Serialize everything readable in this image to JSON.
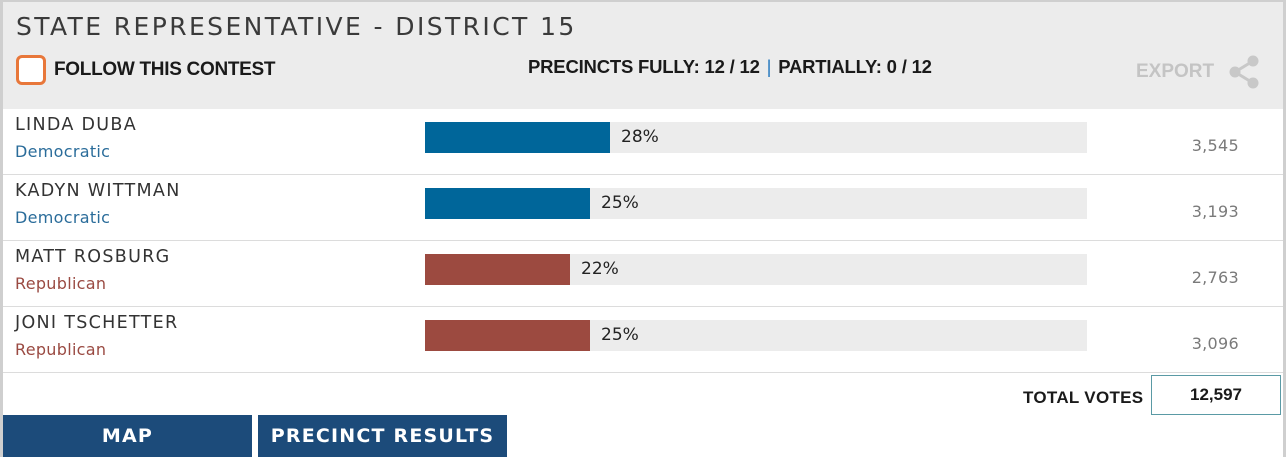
{
  "contest": {
    "title": "STATE REPRESENTATIVE - DISTRICT 15",
    "follow_label": "FOLLOW THIS CONTEST",
    "precincts_fully_label": "PRECINCTS FULLY:",
    "precincts_fully_value": "12 / 12",
    "separator": "|",
    "precincts_partially_label": "PARTIALLY:",
    "precincts_partially_value": "0 / 12",
    "export_label": "EXPORT"
  },
  "colors": {
    "democratic": "#00669a",
    "republican": "#9c4a40",
    "accent_checkbox": "#e8773a",
    "button_bg": "#1c4b7a"
  },
  "candidates": [
    {
      "name": "LINDA DUBA",
      "party": "Democratic",
      "percent_label": "28%",
      "percent": 28,
      "votes": "3,545"
    },
    {
      "name": "KADYN WITTMAN",
      "party": "Democratic",
      "percent_label": "25%",
      "percent": 25,
      "votes": "3,193"
    },
    {
      "name": "MATT ROSBURG",
      "party": "Republican",
      "percent_label": "22%",
      "percent": 22,
      "votes": "2,763"
    },
    {
      "name": "JONI TSCHETTER",
      "party": "Republican",
      "percent_label": "25%",
      "percent": 25,
      "votes": "3,096"
    }
  ],
  "totals": {
    "label": "TOTAL VOTES",
    "value": "12,597"
  },
  "buttons": {
    "map": "MAP",
    "precinct_results": "PRECINCT RESULTS"
  },
  "icons": {
    "checkbox": "checkbox-icon",
    "share": "share-icon"
  }
}
